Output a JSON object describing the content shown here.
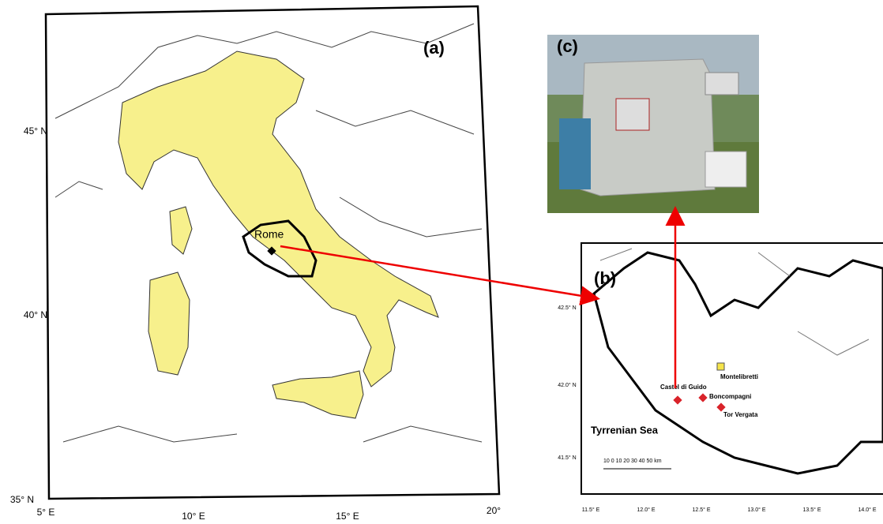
{
  "panel_a": {
    "label": "(a)",
    "lat_labels": [
      "45° N",
      "40° N",
      "35° N"
    ],
    "lon_labels": [
      "5° E",
      "10° E",
      "15° E",
      "20°"
    ],
    "city": "Rome"
  },
  "panel_b": {
    "label": "(b)",
    "lat_labels": [
      "42.5° N",
      "42.0° N",
      "41.5° N"
    ],
    "lon_labels": [
      "11.5° E",
      "12.0° E",
      "12.5° E",
      "13.0° E",
      "13.5° E",
      "14.0° E"
    ],
    "stations": [
      "Montelibretti",
      "Castel di Guido",
      "Boncompagni",
      "Tor Vergata"
    ],
    "sea": "Tyrrenian Sea",
    "scale": "10 0 10 20 30 40 50 km"
  },
  "panel_c": {
    "label": "(c)"
  }
}
